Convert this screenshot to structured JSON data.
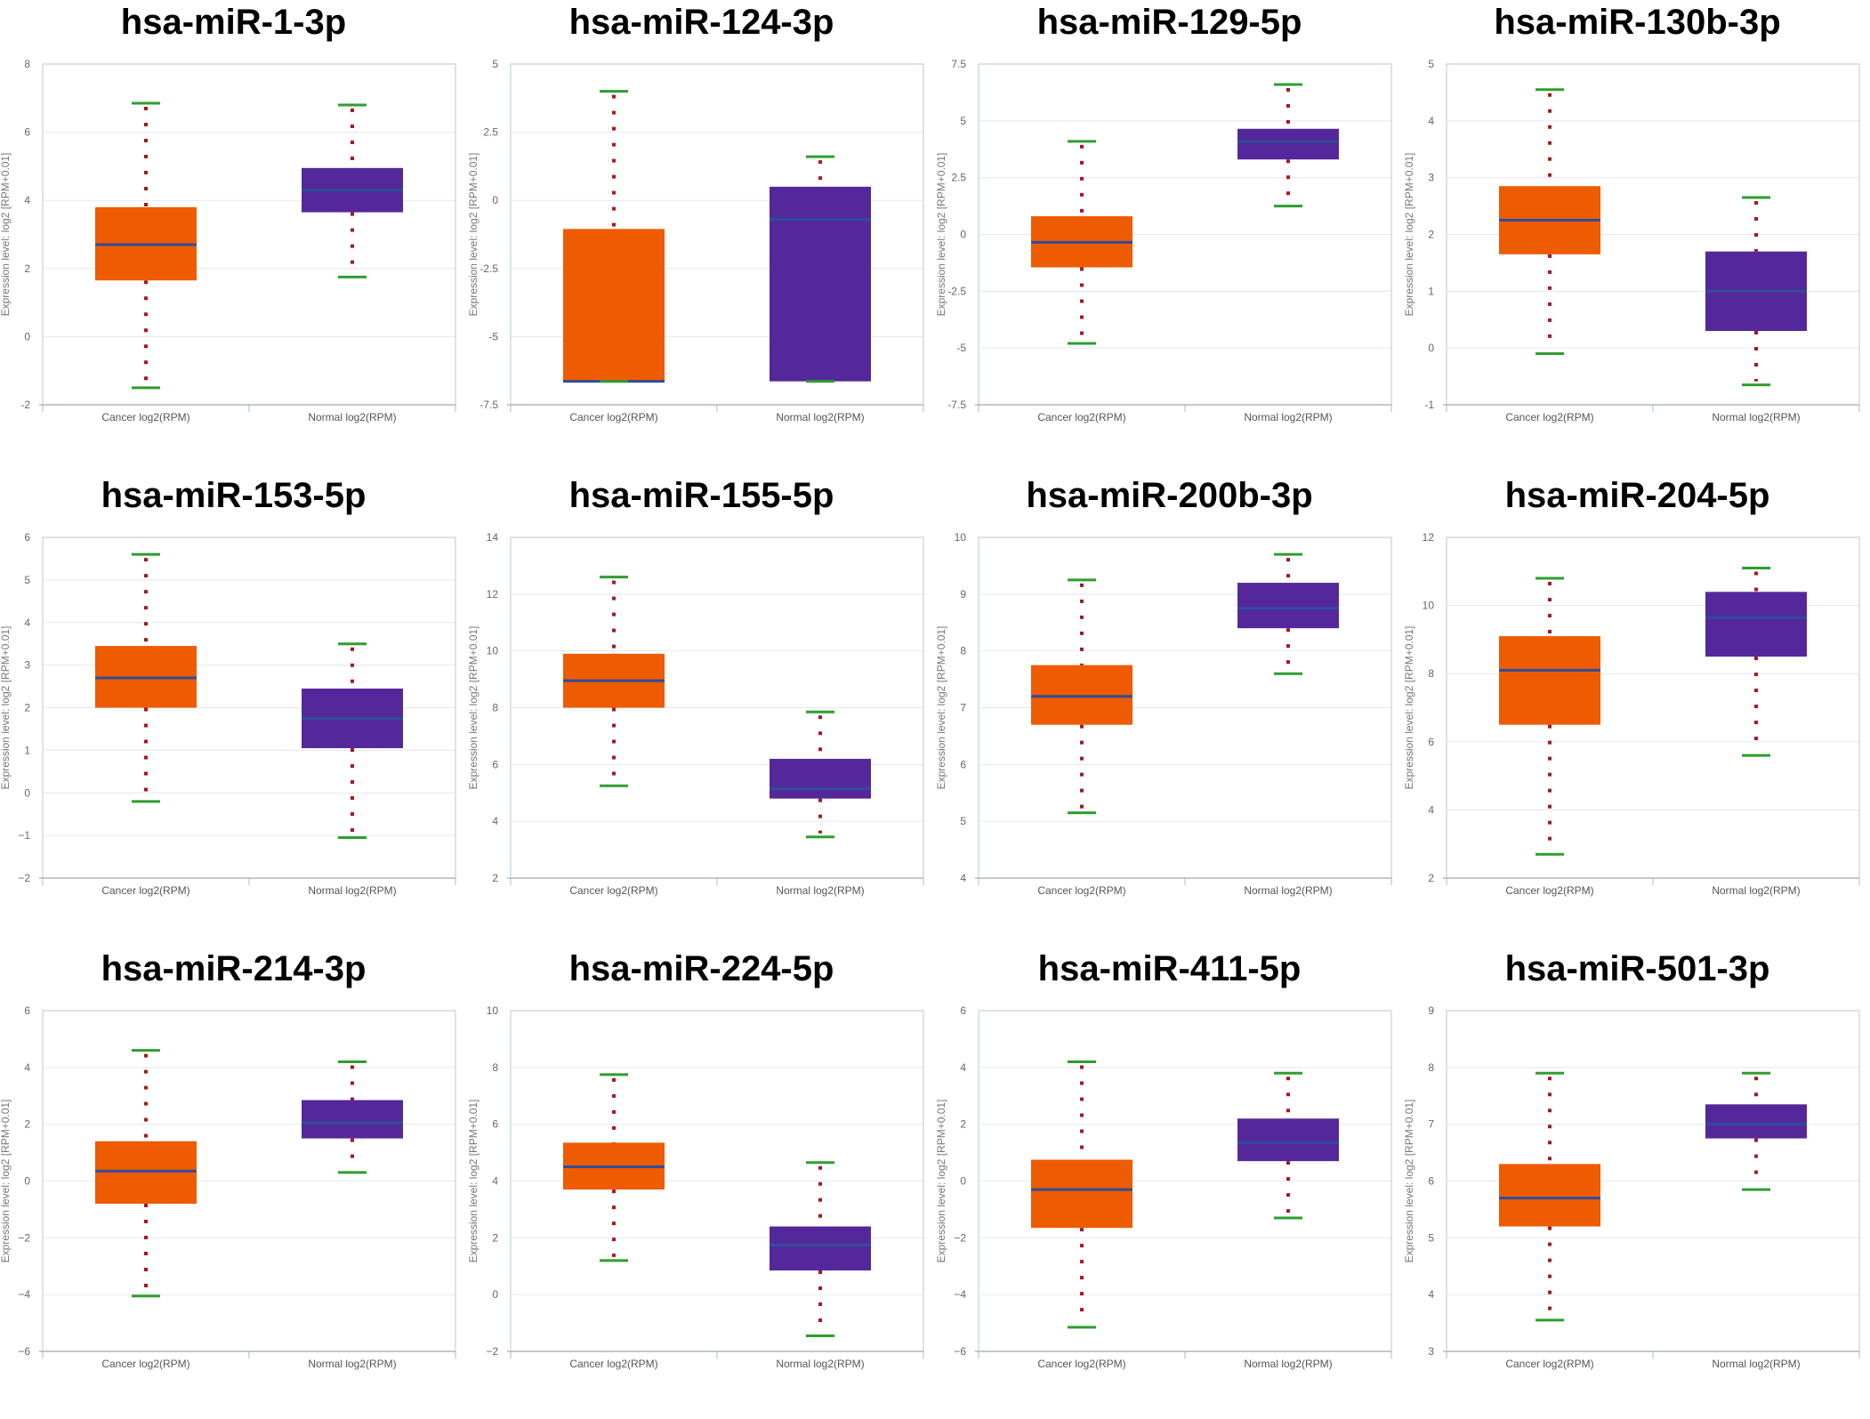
{
  "colors": {
    "cancer_box": "#EE5B00",
    "normal_box": "#54289A",
    "median_line": "#2F4D9B",
    "whisker_cap": "#2E9E2E",
    "whisker_dots": "#A51A1A",
    "frame": "#C8D0DD",
    "grid": "#E4E7EE"
  },
  "chart_data": [
    {
      "type": "box",
      "title": "hsa-miR-1-3p",
      "ylabel": "Expression level: log2 [RPM+0.01]",
      "ylim": [
        -2,
        8
      ],
      "yticks": [
        -2,
        0,
        2,
        4,
        6,
        8
      ],
      "tick_labels": [
        "-2",
        "0",
        "2",
        "4",
        "6",
        "8"
      ],
      "categories": [
        "Cancer log2(RPM)",
        "Normal log2(RPM)"
      ],
      "series": [
        {
          "name": "Cancer",
          "min": -1.5,
          "q1": 1.65,
          "median": 2.7,
          "q3": 3.8,
          "max": 6.85
        },
        {
          "name": "Normal",
          "min": 1.75,
          "q1": 3.65,
          "median": 4.3,
          "q3": 4.95,
          "max": 6.8
        }
      ]
    },
    {
      "type": "box",
      "title": "hsa-miR-124-3p",
      "ylabel": "Expression level: log2 [RPM+0.01]",
      "ylim": [
        -7.5,
        5
      ],
      "yticks": [
        -7.5,
        -5,
        -2.5,
        0,
        2.5,
        5
      ],
      "tick_labels": [
        "-7.5",
        "-5",
        "-2.5",
        "0",
        "2.5",
        "5"
      ],
      "categories": [
        "Cancer log2(RPM)",
        "Normal log2(RPM)"
      ],
      "series": [
        {
          "name": "Cancer",
          "min": -6.64,
          "q1": -6.64,
          "median": -6.64,
          "q3": -1.05,
          "max": 4
        },
        {
          "name": "Normal",
          "min": -6.64,
          "q1": -6.64,
          "median": -0.7,
          "q3": 0.5,
          "max": 1.6
        }
      ]
    },
    {
      "type": "box",
      "title": "hsa-miR-129-5p",
      "ylabel": "Expression level: log2 [RPM+0.01]",
      "ylim": [
        -7.5,
        7.5
      ],
      "yticks": [
        -7.5,
        -5,
        -2.5,
        0,
        2.5,
        5,
        7.5
      ],
      "tick_labels": [
        "-7.5",
        "-5",
        "-2.5",
        "0",
        "2.5",
        "5",
        "7.5"
      ],
      "categories": [
        "Cancer log2(RPM)",
        "Normal log2(RPM)"
      ],
      "series": [
        {
          "name": "Cancer",
          "min": -4.8,
          "q1": -1.45,
          "median": -0.35,
          "q3": 0.8,
          "max": 4.1
        },
        {
          "name": "Normal",
          "min": 1.25,
          "q1": 3.3,
          "median": 4.1,
          "q3": 4.65,
          "max": 6.6
        }
      ]
    },
    {
      "type": "box",
      "title": "hsa-miR-130b-3p",
      "ylabel": "Expression level: log2 [RPM+0.01]",
      "ylim": [
        -1,
        5
      ],
      "yticks": [
        -1,
        0,
        1,
        2,
        3,
        4,
        5
      ],
      "tick_labels": [
        "-1",
        "0",
        "1",
        "2",
        "3",
        "4",
        "5"
      ],
      "categories": [
        "Cancer log2(RPM)",
        "Normal log2(RPM)"
      ],
      "series": [
        {
          "name": "Cancer",
          "min": -0.1,
          "q1": 1.65,
          "median": 2.25,
          "q3": 2.85,
          "max": 4.55
        },
        {
          "name": "Normal",
          "min": -0.65,
          "q1": 0.3,
          "median": 1,
          "q3": 1.7,
          "max": 2.65
        }
      ]
    },
    {
      "type": "box",
      "title": "hsa-miR-153-5p",
      "ylabel": "Expression level: log2 [RPM+0.01]",
      "ylim": [
        -2,
        6
      ],
      "yticks": [
        -2,
        -1,
        0,
        1,
        2,
        3,
        4,
        5,
        6
      ],
      "tick_labels": [
        "−2",
        "−1",
        "0",
        "1",
        "2",
        "3",
        "4",
        "5",
        "6"
      ],
      "categories": [
        "Cancer log2(RPM)",
        "Normal log2(RPM)"
      ],
      "series": [
        {
          "name": "Cancer",
          "min": -0.2,
          "q1": 2,
          "median": 2.7,
          "q3": 3.45,
          "max": 5.6
        },
        {
          "name": "Normal",
          "min": -1.05,
          "q1": 1.05,
          "median": 1.75,
          "q3": 2.45,
          "max": 3.5
        }
      ]
    },
    {
      "type": "box",
      "title": "hsa-miR-155-5p",
      "ylabel": "Expression level: log2 [RPM+0.01]",
      "ylim": [
        2,
        14
      ],
      "yticks": [
        2,
        4,
        6,
        8,
        10,
        12,
        14
      ],
      "tick_labels": [
        "2",
        "4",
        "6",
        "8",
        "10",
        "12",
        "14"
      ],
      "categories": [
        "Cancer log2(RPM)",
        "Normal log2(RPM)"
      ],
      "series": [
        {
          "name": "Cancer",
          "min": 5.25,
          "q1": 8,
          "median": 8.95,
          "q3": 9.9,
          "max": 12.6
        },
        {
          "name": "Normal",
          "min": 3.45,
          "q1": 4.8,
          "median": 5.15,
          "q3": 6.2,
          "max": 7.85
        }
      ]
    },
    {
      "type": "box",
      "title": "hsa-miR-200b-3p",
      "ylabel": "Expression level: log2 [RPM+0.01]",
      "ylim": [
        4,
        10
      ],
      "yticks": [
        4,
        5,
        6,
        7,
        8,
        9,
        10
      ],
      "tick_labels": [
        "4",
        "5",
        "6",
        "7",
        "8",
        "9",
        "10"
      ],
      "categories": [
        "Cancer log2(RPM)",
        "Normal log2(RPM)"
      ],
      "series": [
        {
          "name": "Cancer",
          "min": 5.15,
          "q1": 6.7,
          "median": 7.2,
          "q3": 7.75,
          "max": 9.25
        },
        {
          "name": "Normal",
          "min": 7.6,
          "q1": 8.4,
          "median": 8.75,
          "q3": 9.2,
          "max": 9.7
        }
      ]
    },
    {
      "type": "box",
      "title": "hsa-miR-204-5p",
      "ylabel": "Expression level: log2 [RPM+0.01]",
      "ylim": [
        2,
        12
      ],
      "yticks": [
        2,
        4,
        6,
        8,
        10,
        12
      ],
      "tick_labels": [
        "2",
        "4",
        "6",
        "8",
        "10",
        "12"
      ],
      "categories": [
        "Cancer log2(RPM)",
        "Normal log2(RPM)"
      ],
      "series": [
        {
          "name": "Cancer",
          "min": 2.7,
          "q1": 6.5,
          "median": 8.1,
          "q3": 9.1,
          "max": 10.8
        },
        {
          "name": "Normal",
          "min": 5.6,
          "q1": 8.5,
          "median": 9.65,
          "q3": 10.4,
          "max": 11.1
        }
      ]
    },
    {
      "type": "box",
      "title": "hsa-miR-214-3p",
      "ylabel": "Expression level: log2 [RPM+0.01]",
      "ylim": [
        -6,
        6
      ],
      "yticks": [
        -6,
        -4,
        -2,
        0,
        2,
        4,
        6
      ],
      "tick_labels": [
        "−6",
        "−4",
        "−2",
        "0",
        "2",
        "4",
        "6"
      ],
      "categories": [
        "Cancer log2(RPM)",
        "Normal log2(RPM)"
      ],
      "series": [
        {
          "name": "Cancer",
          "min": -4.05,
          "q1": -0.8,
          "median": 0.35,
          "q3": 1.4,
          "max": 4.6
        },
        {
          "name": "Normal",
          "min": 0.3,
          "q1": 1.5,
          "median": 2.05,
          "q3": 2.85,
          "max": 4.2
        }
      ]
    },
    {
      "type": "box",
      "title": "hsa-miR-224-5p",
      "ylabel": "Expression level: log2 [RPM+0.01]",
      "ylim": [
        -2,
        10
      ],
      "yticks": [
        -2,
        0,
        2,
        4,
        6,
        8,
        10
      ],
      "tick_labels": [
        "−2",
        "0",
        "2",
        "4",
        "6",
        "8",
        "10"
      ],
      "categories": [
        "Cancer log2(RPM)",
        "Normal log2(RPM)"
      ],
      "series": [
        {
          "name": "Cancer",
          "min": 1.2,
          "q1": 3.7,
          "median": 4.5,
          "q3": 5.35,
          "max": 7.75
        },
        {
          "name": "Normal",
          "min": -1.45,
          "q1": 0.85,
          "median": 1.75,
          "q3": 2.4,
          "max": 4.65
        }
      ]
    },
    {
      "type": "box",
      "title": "hsa-miR-411-5p",
      "ylabel": "Expression level: log2 [RPM+0.01]",
      "ylim": [
        -6,
        6
      ],
      "yticks": [
        -6,
        -4,
        -2,
        0,
        2,
        4,
        6
      ],
      "tick_labels": [
        "−6",
        "−4",
        "−2",
        "0",
        "2",
        "4",
        "6"
      ],
      "categories": [
        "Cancer log2(RPM)",
        "Normal log2(RPM)"
      ],
      "series": [
        {
          "name": "Cancer",
          "min": -5.15,
          "q1": -1.65,
          "median": -0.3,
          "q3": 0.75,
          "max": 4.2
        },
        {
          "name": "Normal",
          "min": -1.3,
          "q1": 0.7,
          "median": 1.35,
          "q3": 2.2,
          "max": 3.8
        }
      ]
    },
    {
      "type": "box",
      "title": "hsa-miR-501-3p",
      "ylabel": "Expression level: log2 [RPM+0.01]",
      "ylim": [
        3,
        9
      ],
      "yticks": [
        3,
        4,
        5,
        6,
        7,
        8,
        9
      ],
      "tick_labels": [
        "3",
        "4",
        "5",
        "6",
        "7",
        "8",
        "9"
      ],
      "categories": [
        "Cancer log2(RPM)",
        "Normal log2(RPM)"
      ],
      "series": [
        {
          "name": "Cancer",
          "min": 3.55,
          "q1": 5.2,
          "median": 5.7,
          "q3": 6.3,
          "max": 7.9
        },
        {
          "name": "Normal",
          "min": 5.85,
          "q1": 6.75,
          "median": 7,
          "q3": 7.35,
          "max": 7.9
        }
      ]
    }
  ]
}
